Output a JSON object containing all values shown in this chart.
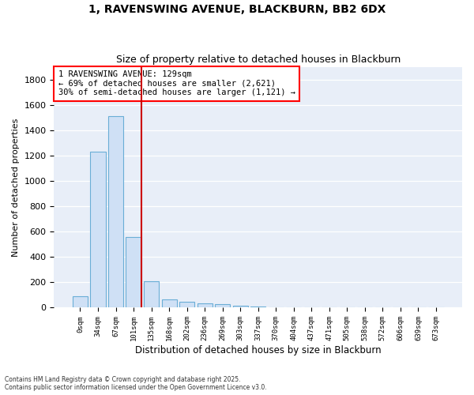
{
  "title_line1": "1, RAVENSWING AVENUE, BLACKBURN, BB2 6DX",
  "title_line2": "Size of property relative to detached houses in Blackburn",
  "xlabel": "Distribution of detached houses by size in Blackburn",
  "ylabel": "Number of detached properties",
  "bar_labels": [
    "0sqm",
    "34sqm",
    "67sqm",
    "101sqm",
    "135sqm",
    "168sqm",
    "202sqm",
    "236sqm",
    "269sqm",
    "303sqm",
    "337sqm",
    "370sqm",
    "404sqm",
    "437sqm",
    "471sqm",
    "505sqm",
    "538sqm",
    "572sqm",
    "606sqm",
    "639sqm",
    "673sqm"
  ],
  "bar_values": [
    90,
    1230,
    1510,
    560,
    210,
    65,
    45,
    35,
    25,
    15,
    10,
    5,
    5,
    0,
    0,
    0,
    0,
    0,
    0,
    0,
    0
  ],
  "bar_color": "#cfe0f5",
  "bar_edge_color": "#6aaed6",
  "vline_color": "#cc0000",
  "vline_x_idx": 3,
  "ylim": [
    0,
    1900
  ],
  "yticks": [
    0,
    200,
    400,
    600,
    800,
    1000,
    1200,
    1400,
    1600,
    1800
  ],
  "annotation_text": "1 RAVENSWING AVENUE: 129sqm\n← 69% of detached houses are smaller (2,621)\n30% of semi-detached houses are larger (1,121) →",
  "background_color": "#e8eef8",
  "grid_color": "#ffffff",
  "footer_line1": "Contains HM Land Registry data © Crown copyright and database right 2025.",
  "footer_line2": "Contains public sector information licensed under the Open Government Licence v3.0."
}
